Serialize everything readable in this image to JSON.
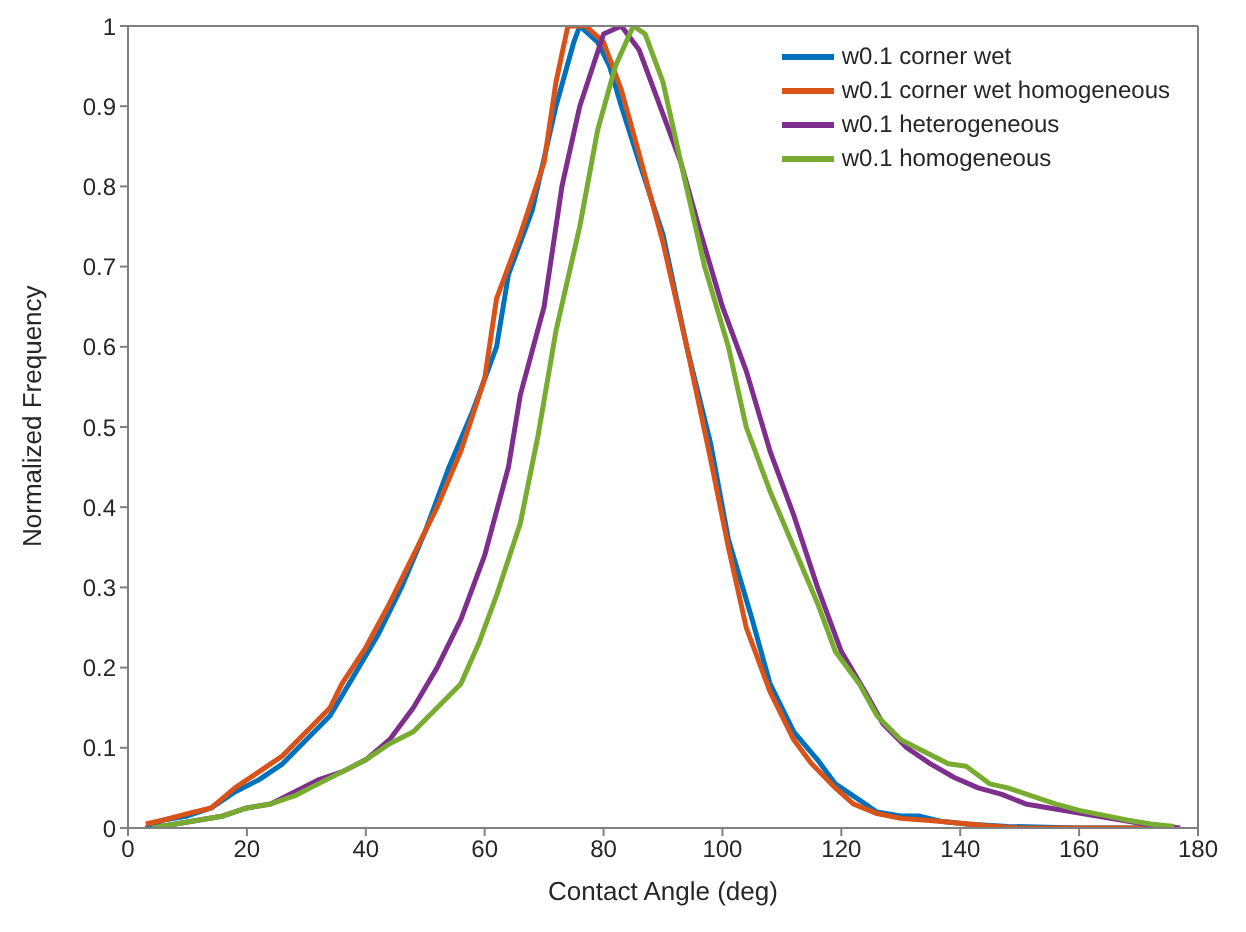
{
  "chart_data": {
    "type": "line",
    "xlabel": "Contact Angle (deg)",
    "ylabel": "Normalized Frequency",
    "xlim": [
      0,
      180
    ],
    "ylim": [
      0,
      1
    ],
    "xticks": [
      0,
      20,
      40,
      60,
      80,
      100,
      120,
      140,
      160,
      180
    ],
    "yticks": [
      0,
      0.1,
      0.2,
      0.3,
      0.4,
      0.5,
      0.6,
      0.7,
      0.8,
      0.9,
      1
    ],
    "legend": "top right",
    "marker": "none",
    "line_style": "solid",
    "series": [
      {
        "name": "w0.1 corner wet",
        "color": "#0072bd",
        "x": [
          3,
          6,
          10,
          14,
          18,
          22,
          26,
          30,
          34,
          38,
          42,
          46,
          50,
          54,
          58,
          62,
          64,
          68,
          72,
          75,
          76,
          79,
          81,
          83,
          86,
          90,
          94,
          98,
          101,
          105,
          108,
          112,
          116,
          119,
          123,
          126,
          130,
          133,
          137,
          141,
          148,
          160,
          172
        ],
        "values": [
          0,
          0.01,
          0.015,
          0.025,
          0.045,
          0.06,
          0.08,
          0.11,
          0.14,
          0.19,
          0.24,
          0.3,
          0.37,
          0.45,
          0.52,
          0.6,
          0.69,
          0.77,
          0.9,
          0.98,
          1,
          0.98,
          0.95,
          0.9,
          0.83,
          0.74,
          0.6,
          0.48,
          0.36,
          0.26,
          0.18,
          0.12,
          0.085,
          0.055,
          0.035,
          0.02,
          0.015,
          0.015,
          0.008,
          0.005,
          0.002,
          0,
          0
        ]
      },
      {
        "name": "w0.1 corner wet homogeneous",
        "color": "#d95319",
        "x": [
          3,
          6,
          10,
          14,
          18,
          22,
          26,
          30,
          34,
          36,
          40,
          44,
          48,
          52,
          56,
          60,
          62,
          66,
          70,
          72,
          74,
          77,
          80,
          83,
          86,
          90,
          94,
          98,
          101,
          104,
          108,
          112,
          115,
          119,
          122,
          126,
          130,
          137,
          144,
          150,
          175
        ],
        "values": [
          0.005,
          0.01,
          0.018,
          0.025,
          0.05,
          0.07,
          0.09,
          0.12,
          0.15,
          0.18,
          0.225,
          0.28,
          0.34,
          0.4,
          0.47,
          0.56,
          0.66,
          0.74,
          0.83,
          0.93,
          1,
          1,
          0.98,
          0.92,
          0.84,
          0.73,
          0.6,
          0.46,
          0.35,
          0.25,
          0.17,
          0.11,
          0.08,
          0.05,
          0.03,
          0.018,
          0.012,
          0.008,
          0.003,
          0,
          0
        ]
      },
      {
        "name": "w0.1 heterogeneous",
        "color": "#7e2f8e",
        "x": [
          4,
          8,
          12,
          16,
          20,
          24,
          28,
          32,
          36,
          40,
          44,
          48,
          52,
          56,
          60,
          64,
          66,
          70,
          73,
          76,
          80,
          83,
          86,
          89,
          93,
          96,
          100,
          104,
          108,
          112,
          116,
          120,
          124,
          127,
          131,
          135,
          139,
          143,
          147,
          151,
          155,
          159,
          163,
          167,
          171,
          177
        ],
        "values": [
          0,
          0.005,
          0.01,
          0.015,
          0.025,
          0.03,
          0.045,
          0.06,
          0.07,
          0.085,
          0.11,
          0.15,
          0.2,
          0.26,
          0.34,
          0.45,
          0.54,
          0.65,
          0.8,
          0.9,
          0.99,
          1,
          0.97,
          0.91,
          0.83,
          0.75,
          0.65,
          0.57,
          0.47,
          0.39,
          0.3,
          0.22,
          0.17,
          0.13,
          0.1,
          0.08,
          0.063,
          0.05,
          0.042,
          0.03,
          0.025,
          0.02,
          0.015,
          0.01,
          0.005,
          0
        ]
      },
      {
        "name": "w0.1 homogeneous",
        "color": "#77ac30",
        "x": [
          4,
          8,
          12,
          16,
          20,
          24,
          28,
          32,
          36,
          40,
          44,
          48,
          52,
          56,
          59,
          62,
          66,
          69,
          72,
          76,
          79,
          82,
          85,
          87,
          90,
          93,
          97,
          101,
          104,
          108,
          112,
          116,
          119,
          123,
          126,
          130,
          134,
          138,
          141,
          145,
          148,
          152,
          156,
          160,
          164,
          168,
          172,
          176
        ],
        "values": [
          0,
          0.005,
          0.01,
          0.015,
          0.025,
          0.03,
          0.04,
          0.055,
          0.07,
          0.085,
          0.105,
          0.12,
          0.15,
          0.18,
          0.23,
          0.29,
          0.38,
          0.49,
          0.62,
          0.75,
          0.87,
          0.95,
          1,
          0.99,
          0.93,
          0.83,
          0.7,
          0.6,
          0.5,
          0.42,
          0.35,
          0.28,
          0.22,
          0.18,
          0.14,
          0.11,
          0.095,
          0.08,
          0.077,
          0.055,
          0.05,
          0.04,
          0.03,
          0.022,
          0.016,
          0.01,
          0.005,
          0.002
        ]
      }
    ]
  }
}
